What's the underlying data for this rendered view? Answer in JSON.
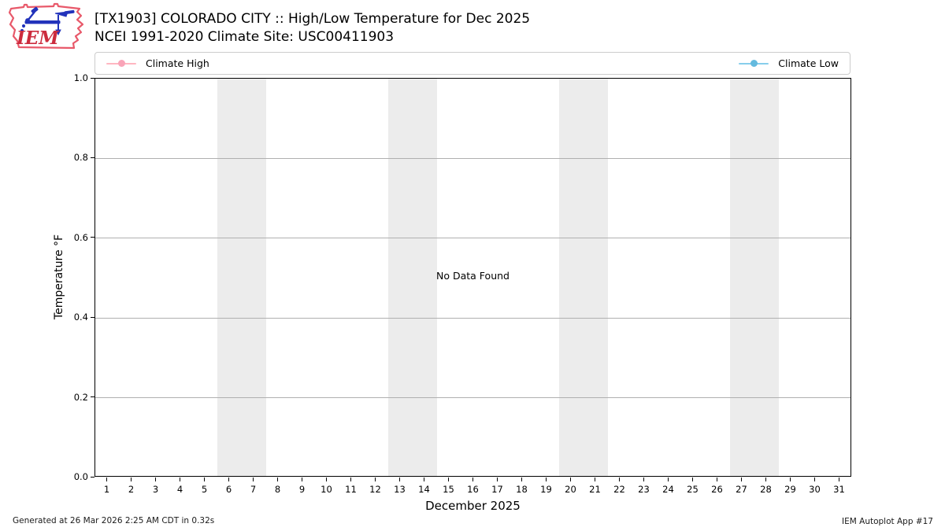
{
  "header": {
    "logo_text": "IEM",
    "title_line1": "[TX1903] COLORADO CITY :: High/Low Temperature for Dec 2025",
    "title_line2": "NCEI 1991-2020 Climate Site: USC00411903"
  },
  "legend": {
    "items": [
      {
        "label": "Climate High",
        "line_color": "#ffb6c1",
        "marker_color": "#f9a4b8"
      },
      {
        "label": "Climate Low",
        "line_color": "#87ceeb",
        "marker_color": "#64bade"
      }
    ]
  },
  "chart_data": {
    "type": "line",
    "title": "[TX1903] COLORADO CITY :: High/Low Temperature for Dec 2025",
    "subtitle": "NCEI 1991-2020 Climate Site: USC00411903",
    "xlabel": "December 2025",
    "ylabel": "Temperature °F",
    "xlim": [
      0.5,
      31.5
    ],
    "ylim": [
      0.0,
      1.0
    ],
    "xticks": [
      1,
      2,
      3,
      4,
      5,
      6,
      7,
      8,
      9,
      10,
      11,
      12,
      13,
      14,
      15,
      16,
      17,
      18,
      19,
      20,
      21,
      22,
      23,
      24,
      25,
      26,
      27,
      28,
      29,
      30,
      31
    ],
    "ytick_labels": [
      "0.0",
      "0.2",
      "0.4",
      "0.6",
      "0.8",
      "1.0"
    ],
    "ytick_values": [
      0.0,
      0.2,
      0.4,
      0.6,
      0.8,
      1.0
    ],
    "grid": true,
    "grid_color": "#b0b0b0",
    "weekend_band_color": "#ececec",
    "weekend_bands": [
      [
        5.5,
        7.5
      ],
      [
        12.5,
        14.5
      ],
      [
        19.5,
        21.5
      ],
      [
        26.5,
        28.5
      ]
    ],
    "series": [
      {
        "name": "Climate High",
        "color": "#ffb6c1",
        "x": [],
        "values": []
      },
      {
        "name": "Climate Low",
        "color": "#87ceeb",
        "x": [],
        "values": []
      }
    ],
    "no_data_message": "No Data Found",
    "legend_position": "top, single row box spanning plot width"
  },
  "footer": {
    "left": "Generated at 26 Mar 2026 2:25 AM CDT in 0.32s",
    "right": "IEM Autoplot App #17"
  }
}
